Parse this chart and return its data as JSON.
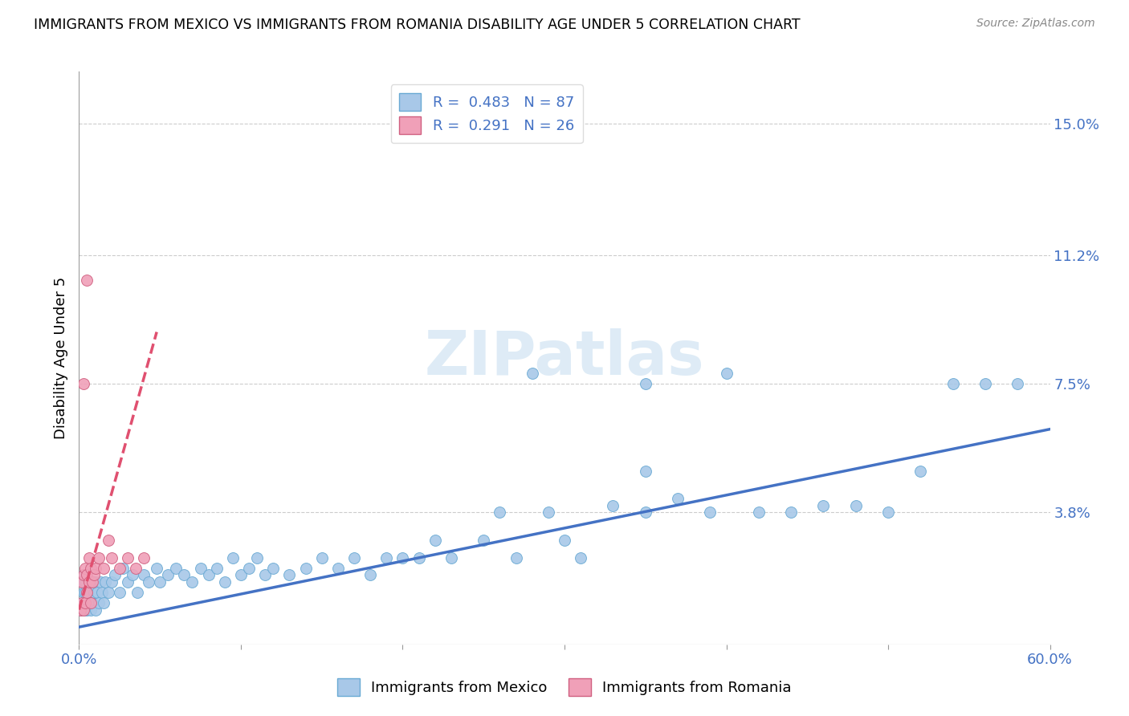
{
  "title": "IMMIGRANTS FROM MEXICO VS IMMIGRANTS FROM ROMANIA DISABILITY AGE UNDER 5 CORRELATION CHART",
  "source": "Source: ZipAtlas.com",
  "ylabel": "Disability Age Under 5",
  "r_mexico": 0.483,
  "n_mexico": 87,
  "r_romania": 0.291,
  "n_romania": 26,
  "color_mexico": "#a8c8e8",
  "color_romania": "#f0a0b8",
  "color_mexico_line": "#4472c4",
  "color_romania_line": "#e05070",
  "color_mexico_edge": "#6aaad4",
  "color_romania_edge": "#d06080",
  "xlim": [
    0.0,
    0.6
  ],
  "ylim": [
    0.0,
    0.165
  ],
  "xticks": [
    0.0,
    0.1,
    0.2,
    0.3,
    0.4,
    0.5,
    0.6
  ],
  "xticklabels": [
    "0.0%",
    "",
    "",
    "",
    "",
    "",
    "60.0%"
  ],
  "yticks_right": [
    0.0,
    0.038,
    0.075,
    0.112,
    0.15
  ],
  "ytick_labels_right": [
    "",
    "3.8%",
    "7.5%",
    "11.2%",
    "15.0%"
  ],
  "watermark": "ZIPatlas",
  "mexico_x": [
    0.001,
    0.002,
    0.002,
    0.003,
    0.003,
    0.003,
    0.004,
    0.004,
    0.004,
    0.005,
    0.005,
    0.005,
    0.006,
    0.006,
    0.007,
    0.007,
    0.008,
    0.008,
    0.009,
    0.01,
    0.01,
    0.011,
    0.012,
    0.013,
    0.014,
    0.015,
    0.016,
    0.018,
    0.02,
    0.022,
    0.025,
    0.027,
    0.03,
    0.033,
    0.036,
    0.04,
    0.043,
    0.048,
    0.05,
    0.055,
    0.06,
    0.065,
    0.07,
    0.075,
    0.08,
    0.085,
    0.09,
    0.095,
    0.1,
    0.105,
    0.11,
    0.115,
    0.12,
    0.13,
    0.14,
    0.15,
    0.16,
    0.17,
    0.18,
    0.19,
    0.2,
    0.21,
    0.22,
    0.23,
    0.25,
    0.26,
    0.27,
    0.29,
    0.3,
    0.31,
    0.33,
    0.35,
    0.37,
    0.39,
    0.42,
    0.44,
    0.46,
    0.48,
    0.5,
    0.52,
    0.54,
    0.56,
    0.58,
    0.35,
    0.4,
    0.35,
    0.28
  ],
  "mexico_y": [
    0.01,
    0.012,
    0.018,
    0.01,
    0.015,
    0.02,
    0.01,
    0.015,
    0.018,
    0.01,
    0.015,
    0.02,
    0.012,
    0.018,
    0.01,
    0.018,
    0.012,
    0.018,
    0.015,
    0.01,
    0.018,
    0.015,
    0.012,
    0.018,
    0.015,
    0.012,
    0.018,
    0.015,
    0.018,
    0.02,
    0.015,
    0.022,
    0.018,
    0.02,
    0.015,
    0.02,
    0.018,
    0.022,
    0.018,
    0.02,
    0.022,
    0.02,
    0.018,
    0.022,
    0.02,
    0.022,
    0.018,
    0.025,
    0.02,
    0.022,
    0.025,
    0.02,
    0.022,
    0.02,
    0.022,
    0.025,
    0.022,
    0.025,
    0.02,
    0.025,
    0.025,
    0.025,
    0.03,
    0.025,
    0.03,
    0.038,
    0.025,
    0.038,
    0.03,
    0.025,
    0.04,
    0.038,
    0.042,
    0.038,
    0.038,
    0.038,
    0.04,
    0.04,
    0.038,
    0.05,
    0.075,
    0.075,
    0.075,
    0.075,
    0.078,
    0.05,
    0.078
  ],
  "romania_x": [
    0.001,
    0.002,
    0.002,
    0.003,
    0.003,
    0.004,
    0.004,
    0.005,
    0.005,
    0.006,
    0.006,
    0.007,
    0.007,
    0.008,
    0.009,
    0.01,
    0.012,
    0.015,
    0.018,
    0.02,
    0.025,
    0.03,
    0.035,
    0.04,
    0.003,
    0.005
  ],
  "romania_y": [
    0.01,
    0.012,
    0.018,
    0.01,
    0.02,
    0.012,
    0.022,
    0.015,
    0.02,
    0.018,
    0.025,
    0.012,
    0.022,
    0.018,
    0.02,
    0.022,
    0.025,
    0.022,
    0.03,
    0.025,
    0.022,
    0.025,
    0.022,
    0.025,
    0.075,
    0.105
  ],
  "mexico_line_x": [
    0.0,
    0.6
  ],
  "mexico_line_y": [
    0.005,
    0.062
  ],
  "romania_line_x": [
    0.0,
    0.048
  ],
  "romania_line_y": [
    0.01,
    0.09
  ]
}
